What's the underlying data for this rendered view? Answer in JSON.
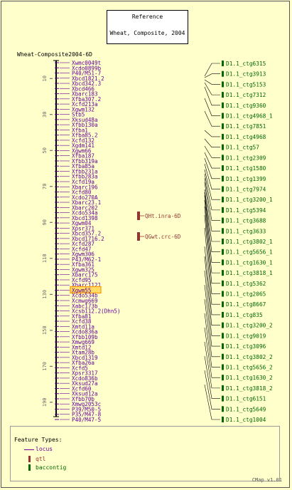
{
  "reference": {
    "title": "Reference",
    "subtitle": "Wheat, Composite, 2004"
  },
  "map_title": "Wheat-Composite2004-6D",
  "chart_data": {
    "type": "genetic-map",
    "map_name": "Wheat-Composite2004-6D",
    "scale_ticks": [
      10,
      30,
      50,
      70,
      90,
      110,
      130,
      150,
      170,
      190
    ],
    "scale_range": [
      0,
      198
    ],
    "highlighted_marker": "Xgwm55",
    "loci": [
      "Xwmc0049t",
      "Xcdo0899b",
      "P40/M51-7",
      "Xbcd1821.2",
      "Xbcd342.3",
      "Xbcd466",
      "Xbarc183",
      "Xfba307.2",
      "Xcfd213a",
      "Xgwm132",
      "Stb5",
      "Xksud48a",
      "Xfbb130a",
      "Xfba1",
      "Xfba85.2",
      "Xcfd132",
      "Xgdm141",
      "Xgwm66",
      "Xfba187",
      "Xfbb319a",
      "Xfba85a",
      "Xfbb231a",
      "Xfbb283a",
      "Xcfd19a",
      "Xbarc196",
      "Xcfd80",
      "Xcdo270A",
      "Xbarc23.1",
      "Xbarc202",
      "Xcdo534a",
      "Xbcd1398",
      "Xgwm04",
      "Xpsr371",
      "Xbcd357.2",
      "Xbcd1716.2",
      "Xcfd287",
      "Xcfd47",
      "Xgwm306",
      "P43/M62-1",
      "Xfba361",
      "Xgwm325",
      "Xbarc175",
      "Xcfd95",
      "Xbarc1121",
      "Xgwm55",
      "Xcdo534b",
      "Xcmwg669",
      "Xabc173b",
      "Xcsb112.2(Dhn5)",
      "Xfba81",
      "Xcfd38",
      "Xmtd11a",
      "Xcdo836a",
      "Xfbb109b",
      "Xmwg669",
      "Xmtd12",
      "Xtam28b",
      "Xbcd1319",
      "Xfba26a",
      "Xcfd5",
      "Xpsr3317",
      "Xcdo836b",
      "Xksud27a",
      "Xcfd60",
      "Xksud12a",
      "Xfbb70b",
      "Xmwg2053c",
      "P39/M50-5",
      "P35/M47-8",
      "P40/M47-5"
    ],
    "qtls": [
      "QHt.inra-6D",
      "QGwt.crc-6D"
    ],
    "contigs": [
      "D1.1_ctg6315",
      "D1.1_ctg3913",
      "D1.1_ctg5153",
      "D1.1_ctg7312",
      "D1.1_ctg9360",
      "D1.1_ctg4968_1",
      "D1.1_ctg7851",
      "D1.1_ctg4968",
      "D1.1_ctg57",
      "D1.1_ctg2309",
      "D1.1_ctg1580",
      "D1.1_ctg1399",
      "D1.1_ctg7974",
      "D1.1_ctg3200_1",
      "D1.1_ctg5394",
      "D1.1_ctg3688",
      "D1.1_ctg3633",
      "D1.1_ctg3802_1",
      "D1.1_ctg5656_1",
      "D1.1_ctg1630_1",
      "D1.1_ctg3818_1",
      "D1.1_ctg5362",
      "D1.1_ctg2065",
      "D1.1_ctg8667",
      "D1.1_ctg835",
      "D1.1_ctg3200_2",
      "D1.1_ctg9019",
      "D1.1_ctg3096",
      "D1.1_ctg3802_2",
      "D1.1_ctg5656_2",
      "D1.1_ctg1630_2",
      "D1.1_ctg3818_2",
      "D1.1_ctg6151",
      "D1.1_ctg5649",
      "D1.1_ctg1004"
    ],
    "colors": {
      "locus": "#660099",
      "qtl": "#993333",
      "contig": "#006600",
      "highlight": "#ff9900",
      "background": "#ffffcc"
    }
  },
  "legend": {
    "title": "Feature Types:",
    "items": [
      {
        "label": "locus",
        "color": "#660099"
      },
      {
        "label": "qtl",
        "color": "#993333"
      },
      {
        "label": "baccontig",
        "color": "#006600"
      }
    ]
  },
  "footer": "CMap v1.01"
}
